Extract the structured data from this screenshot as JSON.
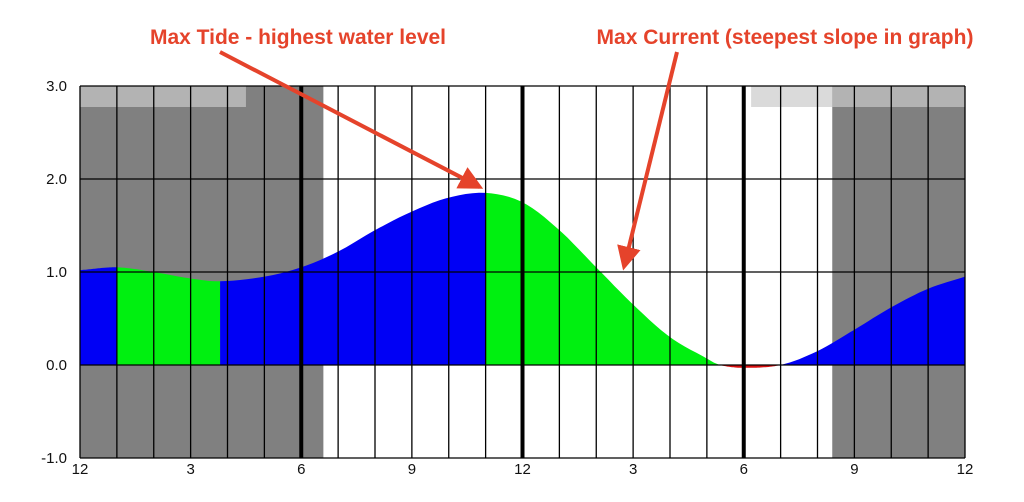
{
  "chart_data": {
    "type": "area",
    "title": "",
    "xlabel": "",
    "ylabel": "",
    "xlim": [
      0,
      24
    ],
    "ylim": [
      -1.0,
      3.0
    ],
    "grid": true,
    "x_tick_labels": [
      {
        "hour": 0,
        "label": "12"
      },
      {
        "hour": 3,
        "label": "3"
      },
      {
        "hour": 6,
        "label": "6"
      },
      {
        "hour": 9,
        "label": "9"
      },
      {
        "hour": 12,
        "label": "12"
      },
      {
        "hour": 15,
        "label": "3"
      },
      {
        "hour": 18,
        "label": "6"
      },
      {
        "hour": 21,
        "label": "9"
      },
      {
        "hour": 24,
        "label": "12"
      }
    ],
    "y_tick_labels": [
      {
        "value": 3.0,
        "label": "3.0"
      },
      {
        "value": 2.0,
        "label": "2.0"
      },
      {
        "value": 1.0,
        "label": "1.0"
      },
      {
        "value": 0.0,
        "label": "0.0"
      },
      {
        "value": -1.0,
        "label": "-1.0"
      }
    ],
    "x_gridline_interval_hours": 1,
    "bold_gridlines_at_hours": [
      6,
      12,
      18
    ],
    "night_shading_hours": [
      [
        0,
        6.6
      ],
      [
        20.4,
        24
      ]
    ],
    "light_bands_hours": [
      [
        0,
        4.5
      ],
      [
        18.2,
        24
      ]
    ],
    "tide_curve": {
      "hours": [
        0,
        1,
        2,
        3,
        3.8,
        5,
        6,
        7,
        8,
        9,
        10,
        11,
        12,
        13,
        14,
        15,
        16,
        17,
        17.35,
        18,
        19,
        20,
        21,
        22,
        23,
        24
      ],
      "levels": [
        1.02,
        1.05,
        1.0,
        0.93,
        0.9,
        0.95,
        1.05,
        1.22,
        1.45,
        1.65,
        1.8,
        1.85,
        1.75,
        1.45,
        1.05,
        0.65,
        0.3,
        0.07,
        0.0,
        -0.03,
        0.0,
        0.15,
        0.38,
        0.62,
        0.82,
        0.95
      ]
    },
    "segments": [
      {
        "from": 0,
        "to": 1,
        "color": "#0000f5"
      },
      {
        "from": 1,
        "to": 3.8,
        "color": "#00f010"
      },
      {
        "from": 3.8,
        "to": 11,
        "color": "#0000f5"
      },
      {
        "from": 11,
        "to": 17.35,
        "color": "#00f010"
      },
      {
        "from": 17.35,
        "to": 19,
        "color": "#d81010"
      },
      {
        "from": 19,
        "to": 24,
        "color": "#0000f5"
      }
    ],
    "colors": {
      "night": "#808080",
      "light_band_day": "#dadada",
      "light_band_night": "#b3b3b3",
      "annotation": "#e5432b"
    },
    "annotations": [
      {
        "text": "Max Tide - highest water level",
        "points_to_hour": 11,
        "points_to_level": 1.85
      },
      {
        "text": "Max Current (steepest slope in graph)",
        "points_to_hour": 14.7,
        "points_to_level": 0.95
      }
    ]
  }
}
